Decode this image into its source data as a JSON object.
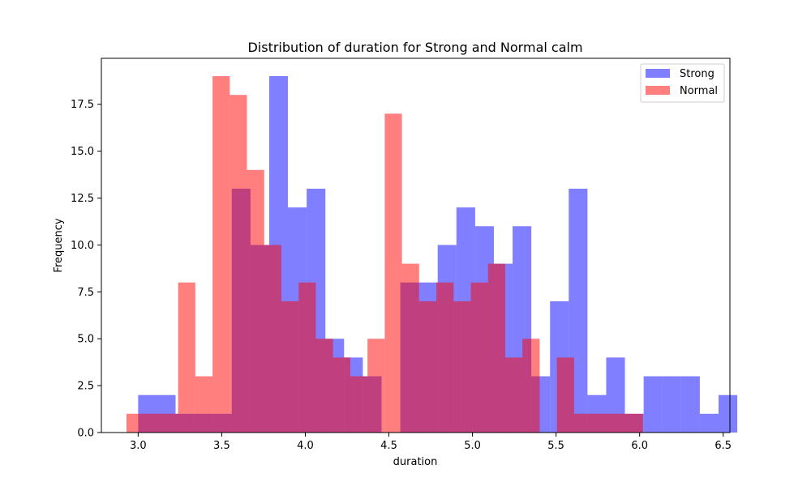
{
  "chart_data": {
    "type": "bar",
    "title": "Distribution of duration for Strong and Normal calm",
    "xlabel": "duration",
    "ylabel": "Frequency",
    "xlim": [
      2.78,
      6.54
    ],
    "ylim": [
      0,
      19.95
    ],
    "xticks": [
      "3.0",
      "3.5",
      "4.0",
      "4.5",
      "5.0",
      "5.5",
      "6.0",
      "6.5"
    ],
    "yticks": [
      "0.0",
      "2.5",
      "5.0",
      "7.5",
      "10.0",
      "12.5",
      "15.0",
      "17.5"
    ],
    "legend_position": "top-right",
    "grid": false,
    "series": [
      {
        "name": "Strong",
        "color": "#0000ff",
        "opacity": 0.5,
        "bin_start": 3.0,
        "bin_width": 0.112,
        "values": [
          2,
          2,
          1,
          1,
          1,
          13,
          10,
          19,
          12,
          13,
          5,
          4,
          3,
          0,
          8,
          8,
          10,
          12,
          11,
          9,
          11,
          3,
          7,
          13,
          2,
          4,
          1,
          3,
          3,
          3,
          1,
          2
        ]
      },
      {
        "name": "Normal",
        "color": "#ff0000",
        "opacity": 0.5,
        "bin_start": 2.93,
        "bin_width": 0.103,
        "values": [
          1,
          1,
          1,
          8,
          3,
          19,
          18,
          14,
          10,
          7,
          8,
          5,
          4,
          3,
          5,
          17,
          9,
          7,
          8,
          7,
          8,
          9,
          4,
          5,
          0,
          4,
          1,
          1,
          1,
          1
        ]
      }
    ]
  }
}
